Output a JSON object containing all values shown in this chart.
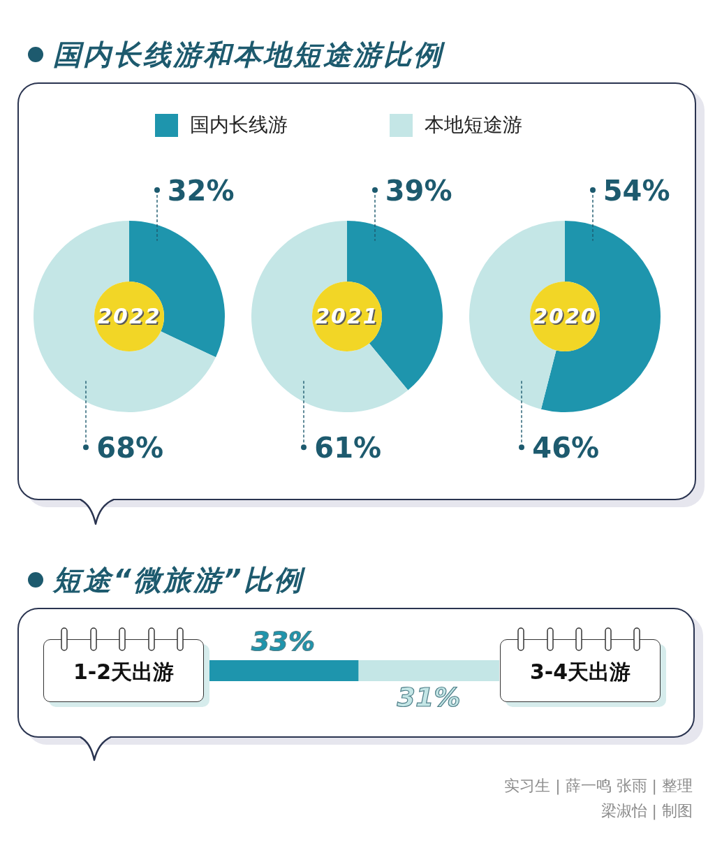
{
  "chart_data": [
    {
      "type": "donut",
      "title": "国内长线游和本地短途游比例",
      "categories": [
        "国内长线游",
        "本地短途游"
      ],
      "values": [
        32,
        68
      ],
      "colors": [
        "#1e95ad",
        "#c4e6e6"
      ],
      "value_labels": [
        "32%",
        "68%"
      ],
      "legend": "top",
      "annotations": [
        "2022"
      ]
    },
    {
      "type": "donut",
      "categories": [
        null,
        null
      ],
      "values": [
        39,
        61
      ],
      "colors": [
        "#1e95ad",
        "#c4e6e6"
      ],
      "value_labels": [
        "39%",
        "61%"
      ],
      "annotations": [
        "2021"
      ]
    },
    {
      "type": "donut",
      "categories": [
        null,
        null
      ],
      "values": [
        54,
        46
      ],
      "colors": [
        "#1e95ad",
        "#c4e6e6"
      ],
      "value_labels": [
        "54%",
        "46%"
      ],
      "annotations": [
        "2020"
      ]
    },
    {
      "type": "bar",
      "title": "短途“微旅游”比例",
      "orientation": "horizontal",
      "stacked": true,
      "categories": [
        null
      ],
      "series": [
        {
          "name": "1-2天出游",
          "color": "#1e95ad",
          "values": [
            33
          ],
          "value_labels": [
            "33%"
          ]
        },
        {
          "name": "3-4天出游",
          "color": "#c4e6e6",
          "values": [
            31
          ],
          "value_labels": [
            "31%"
          ]
        }
      ],
      "annotations": [
        "实习生 | 薛一鸣 张雨 | 整理",
        "梁淑怡 | 制图"
      ]
    }
  ]
}
